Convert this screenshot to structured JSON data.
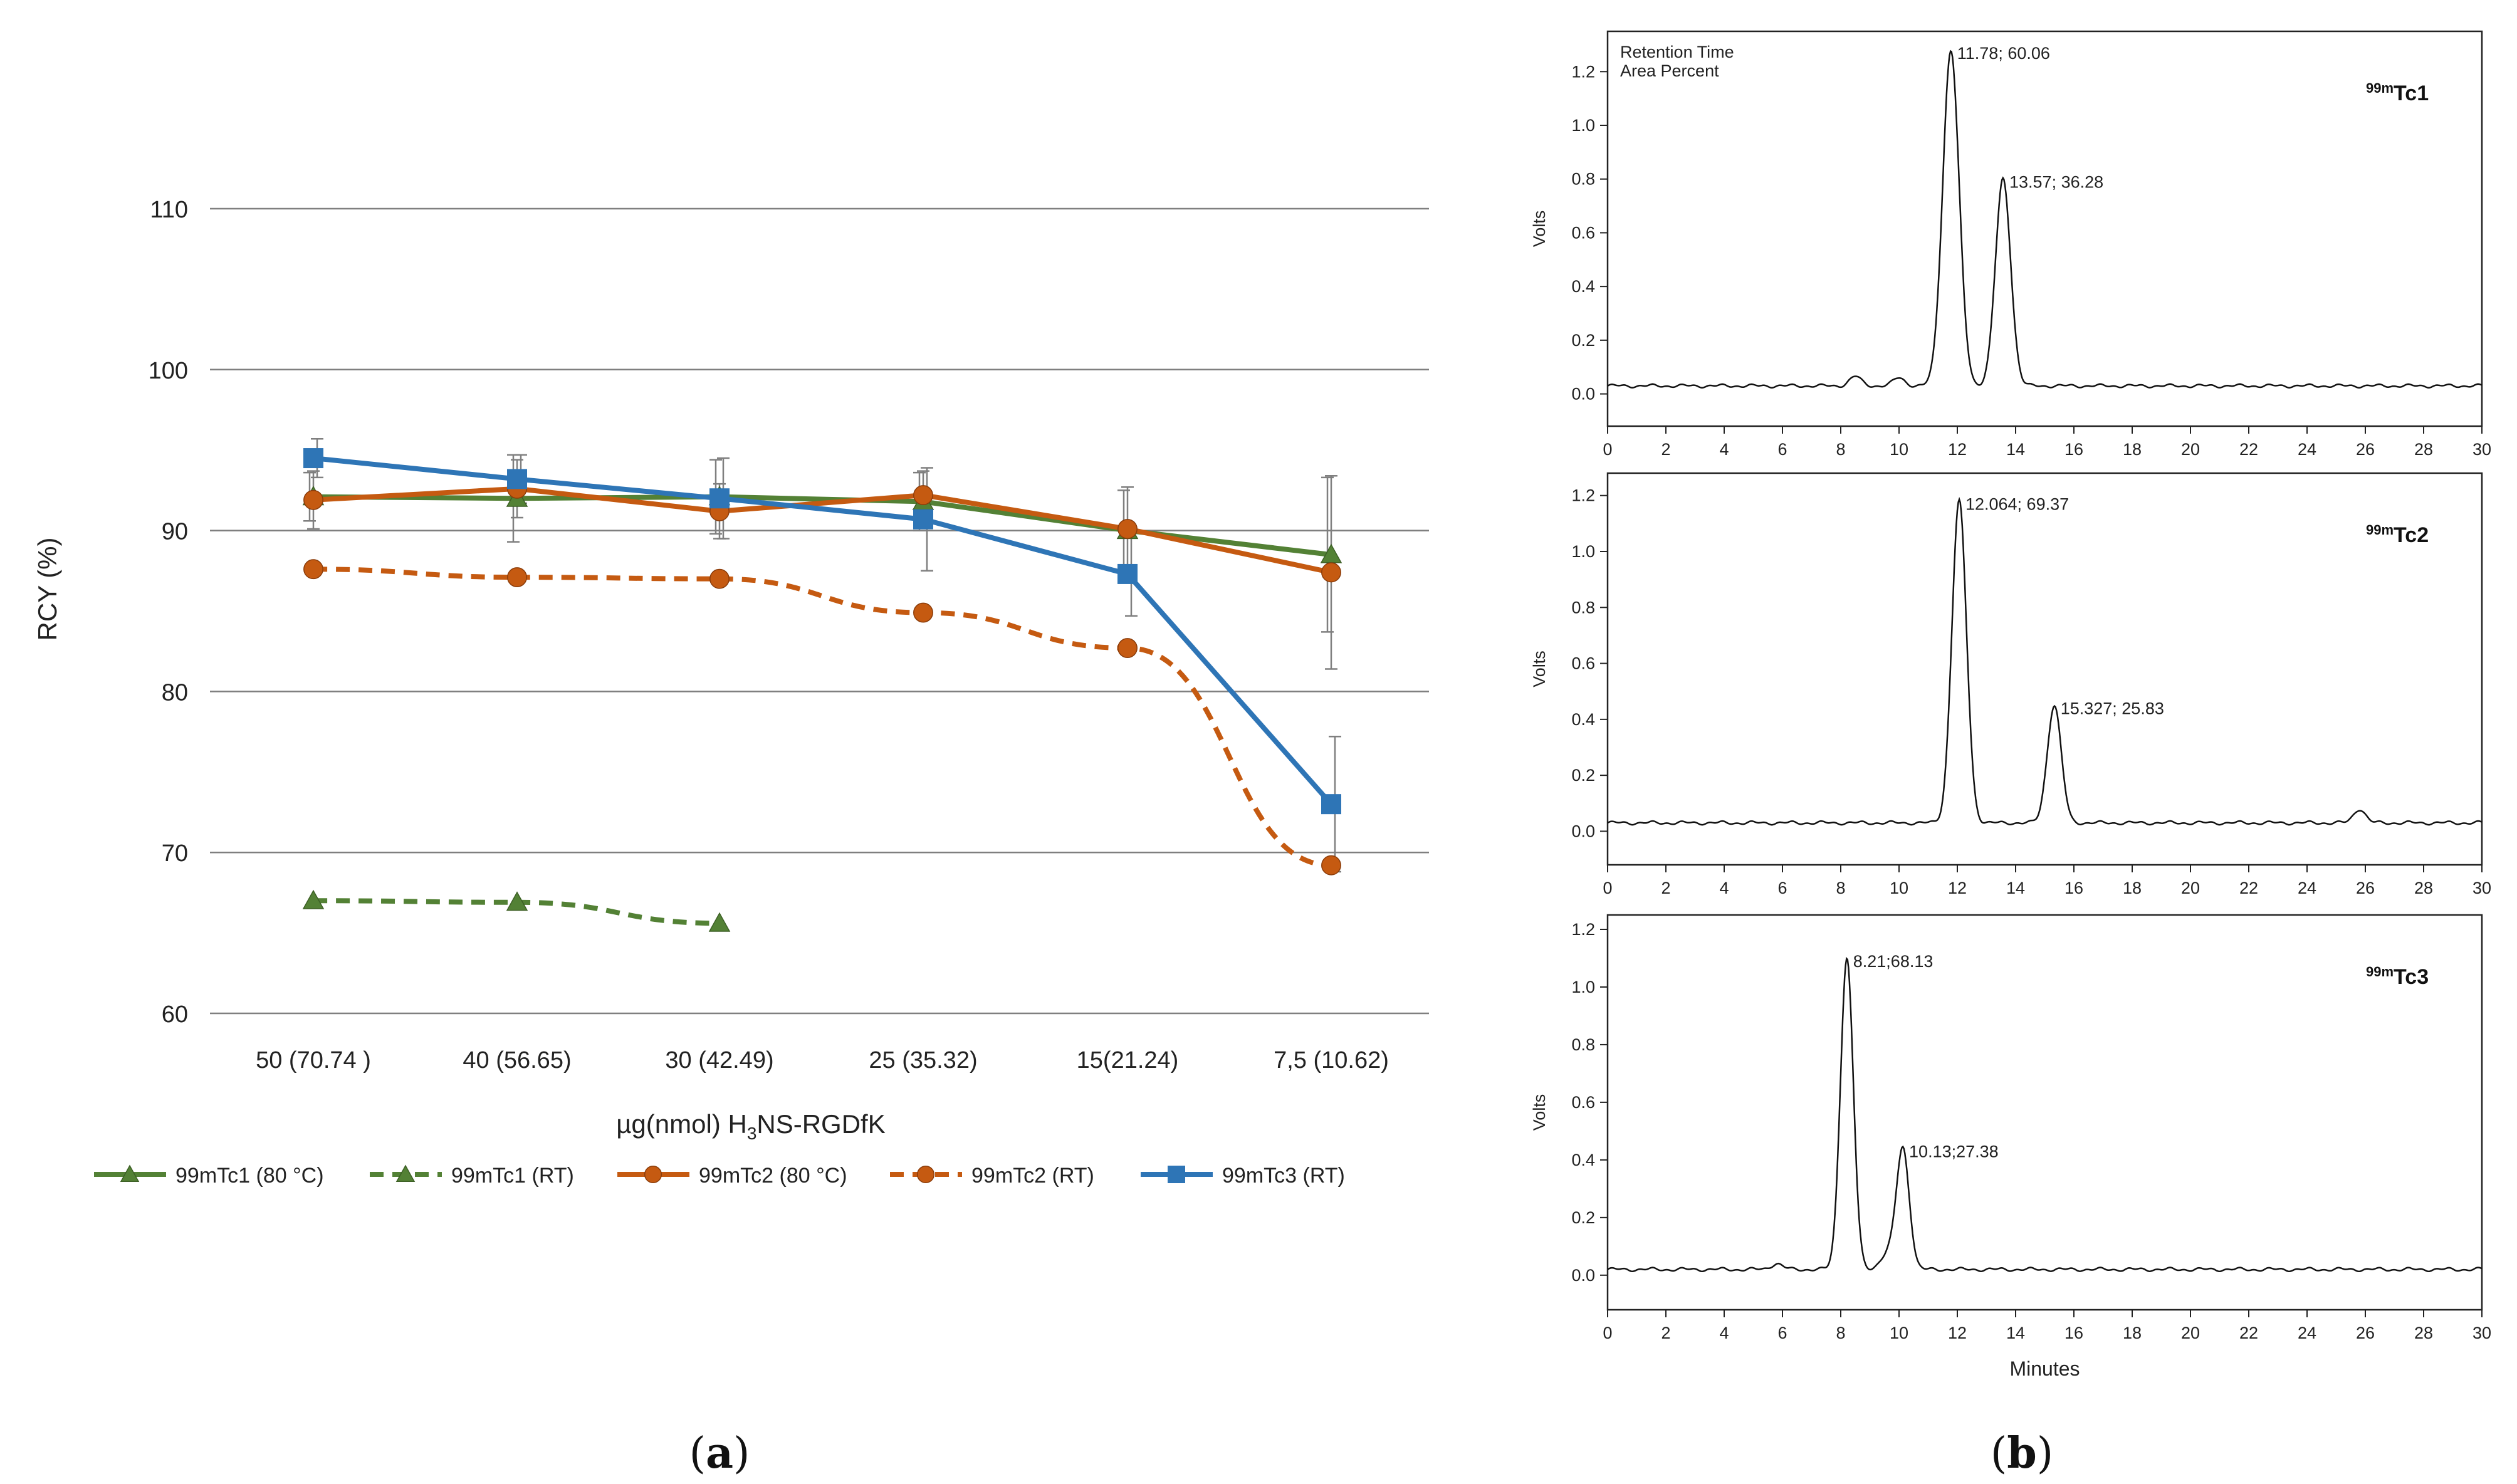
{
  "panel_labels": {
    "a": {
      "open": "(",
      "letter": "a",
      "close": ")"
    },
    "b": {
      "open": "(",
      "letter": "b",
      "close": ")"
    }
  },
  "chart_data": [
    {
      "type": "line",
      "id": "rcy",
      "title": "",
      "ylabel": "RCY (%)",
      "xlabel": {
        "prefix": "µg(nmol) H",
        "sub": "3",
        "suffix": "NS-RGDfK"
      },
      "ylim": [
        60,
        110
      ],
      "yticks": [
        60,
        70,
        80,
        90,
        100,
        110
      ],
      "grid": true,
      "legend_position": "bottom",
      "categories": [
        "50 (70.74 )",
        "40 (56.65)",
        "30 (42.49)",
        "25 (35.32)",
        "15(21.24)",
        "7,5 (10.62)"
      ],
      "series": [
        {
          "name": "99mTc1 (80 °C)",
          "color": "#538135",
          "dash": false,
          "marker": "triangle",
          "values": [
            92.1,
            92.0,
            92.1,
            91.8,
            90.0,
            88.5
          ],
          "errors": [
            1.5,
            2.7,
            2.3,
            1.8,
            2.5,
            4.8
          ]
        },
        {
          "name": "99mTc1 (RT)",
          "color": "#538135",
          "dash": true,
          "marker": "triangle",
          "values": [
            67.0,
            66.9,
            65.6,
            null,
            null,
            null
          ],
          "errors": [
            null,
            null,
            null,
            null,
            null,
            null
          ]
        },
        {
          "name": "99mTc2 (80 °C)",
          "color": "#C55A11",
          "dash": false,
          "marker": "circle",
          "values": [
            91.9,
            92.6,
            91.2,
            92.2,
            90.1,
            87.4
          ],
          "errors": [
            1.8,
            1.8,
            1.7,
            1.5,
            2.6,
            6.0
          ]
        },
        {
          "name": "99mTc2 (RT)",
          "color": "#C55A11",
          "dash": true,
          "marker": "circle",
          "values": [
            87.6,
            87.1,
            87.0,
            84.9,
            82.7,
            69.2
          ],
          "errors": [
            null,
            null,
            null,
            null,
            null,
            null
          ]
        },
        {
          "name": "99mTc3 (RT)",
          "color": "#2E75B6",
          "dash": false,
          "marker": "square",
          "values": [
            94.5,
            93.2,
            92.0,
            90.7,
            87.3,
            73.0
          ],
          "errors": [
            1.2,
            1.5,
            2.5,
            3.2,
            2.6,
            4.2
          ]
        }
      ]
    },
    {
      "type": "line",
      "id": "hplc-tc1",
      "label": {
        "sup": "99m",
        "main": "Tc1"
      },
      "ylabel": "Volts",
      "xlabel": "",
      "header": [
        "Retention Time",
        "Area Percent"
      ],
      "xlim": [
        0,
        30
      ],
      "ylim": [
        -0.12,
        1.35
      ],
      "xticks": [
        0,
        2,
        4,
        6,
        8,
        10,
        12,
        14,
        16,
        18,
        20,
        22,
        24,
        26,
        28,
        30
      ],
      "yticks": [
        "0.0",
        "0.2",
        "0.4",
        "0.6",
        "0.8",
        "1.0",
        "1.2"
      ],
      "baseline": 0.03,
      "peaks": [
        {
          "rt": 11.78,
          "height": 1.25,
          "width": 0.28,
          "annotation": "11.78;   60.06"
        },
        {
          "rt": 13.57,
          "height": 0.77,
          "width": 0.26,
          "annotation": "13.57; 36.28"
        },
        {
          "rt": 8.5,
          "height": 0.035,
          "width": 0.2,
          "annotation": ""
        },
        {
          "rt": 10.0,
          "height": 0.03,
          "width": 0.2,
          "annotation": ""
        }
      ]
    },
    {
      "type": "line",
      "id": "hplc-tc2",
      "label": {
        "sup": "99m",
        "main": "Tc2"
      },
      "ylabel": "Volts",
      "xlabel": "",
      "xlim": [
        0,
        30
      ],
      "ylim": [
        -0.12,
        1.28
      ],
      "xticks": [
        0,
        2,
        4,
        6,
        8,
        10,
        12,
        14,
        16,
        18,
        20,
        22,
        24,
        26,
        28,
        30
      ],
      "yticks": [
        "0.0",
        "0.2",
        "0.4",
        "0.6",
        "0.8",
        "1.0",
        "1.2"
      ],
      "baseline": 0.03,
      "peaks": [
        {
          "rt": 12.064,
          "height": 1.15,
          "width": 0.25,
          "annotation": "12.064;  69.37"
        },
        {
          "rt": 15.327,
          "height": 0.42,
          "width": 0.24,
          "annotation": "15.327; 25.83"
        },
        {
          "rt": 25.8,
          "height": 0.05,
          "width": 0.2,
          "annotation": ""
        }
      ]
    },
    {
      "type": "line",
      "id": "hplc-tc3",
      "label": {
        "sup": "99m",
        "main": "Tc3"
      },
      "ylabel": "Volts",
      "xlabel": "Minutes",
      "xlim": [
        0,
        30
      ],
      "ylim": [
        -0.12,
        1.25
      ],
      "xticks": [
        0,
        2,
        4,
        6,
        8,
        10,
        12,
        14,
        16,
        18,
        20,
        22,
        24,
        26,
        28,
        30
      ],
      "yticks": [
        "0.0",
        "0.2",
        "0.4",
        "0.6",
        "0.8",
        "1.0",
        "1.2"
      ],
      "baseline": 0.02,
      "peaks": [
        {
          "rt": 8.21,
          "height": 1.08,
          "width": 0.22,
          "annotation": "8.21;68.13"
        },
        {
          "rt": 10.13,
          "height": 0.42,
          "width": 0.22,
          "annotation": "10.13;27.38"
        },
        {
          "rt": 5.8,
          "height": 0.02,
          "width": 0.2,
          "annotation": ""
        },
        {
          "rt": 9.6,
          "height": 0.05,
          "width": 0.25,
          "annotation": ""
        }
      ]
    }
  ]
}
